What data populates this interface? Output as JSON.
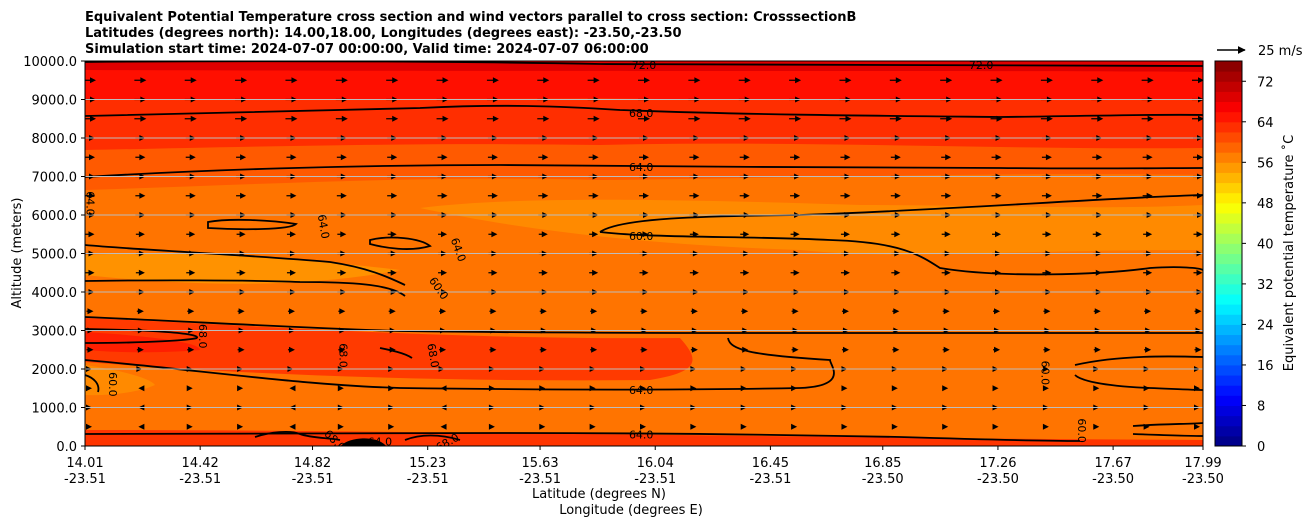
{
  "chart_data": {
    "type": "contour",
    "title_lines": [
      "Equivalent Potential Temperature cross section and wind vectors parallel to cross section: CrosssectionB",
      "Latitudes (degrees north): 14.00,18.00, Longitudes (degrees east): -23.50,-23.50",
      "Simulation start time: 2024-07-07 00:00:00, Valid time: 2024-07-07 06:00:00"
    ],
    "ylabel": "Altitude (meters)",
    "xlabel_lat": "Latitude (degrees N)",
    "xlabel_lon": "Longitude (degrees E)",
    "ylim": [
      0,
      10000
    ],
    "xlim": [
      14.01,
      17.99
    ],
    "yticks": [
      0,
      1000,
      2000,
      3000,
      4000,
      5000,
      6000,
      7000,
      8000,
      9000,
      10000
    ],
    "ytick_labels": [
      "0.0",
      "1000.0",
      "2000.0",
      "3000.0",
      "4000.0",
      "5000.0",
      "6000.0",
      "7000.0",
      "8000.0",
      "9000.0",
      "10000.0"
    ],
    "xticks": [
      {
        "lat": "14.01",
        "lon": "-23.51"
      },
      {
        "lat": "14.42",
        "lon": "-23.51"
      },
      {
        "lat": "14.82",
        "lon": "-23.51"
      },
      {
        "lat": "15.23",
        "lon": "-23.51"
      },
      {
        "lat": "15.63",
        "lon": "-23.51"
      },
      {
        "lat": "16.04",
        "lon": "-23.51"
      },
      {
        "lat": "16.45",
        "lon": "-23.51"
      },
      {
        "lat": "16.85",
        "lon": "-23.50"
      },
      {
        "lat": "17.26",
        "lon": "-23.50"
      },
      {
        "lat": "17.67",
        "lon": "-23.50"
      },
      {
        "lat": "17.99",
        "lon": "-23.50"
      }
    ],
    "colorbar": {
      "label": "Equivalent potential temperature $^\\circ$C",
      "label_text": "Equivalent potential temperature ˚C",
      "min": 0,
      "max": 76,
      "step": 2,
      "ticks": [
        0,
        8,
        16,
        24,
        32,
        40,
        48,
        56,
        64,
        72
      ],
      "tick_labels": [
        "0",
        "8",
        "16",
        "24",
        "32",
        "40",
        "48",
        "56",
        "64",
        "72"
      ]
    },
    "quiver_key": {
      "label": "25 m/s",
      "value_ms": 25
    },
    "contour_labels": [
      {
        "text": "72.0",
        "lat": 16.0,
        "alt": 9900,
        "rot": 0
      },
      {
        "text": "72.0",
        "lat": 17.2,
        "alt": 9900,
        "rot": 0
      },
      {
        "text": "68.0",
        "lat": 15.99,
        "alt": 8650,
        "rot": 0
      },
      {
        "text": "64.0",
        "lat": 15.99,
        "alt": 7250,
        "rot": 0
      },
      {
        "text": "64.0",
        "lat": 14.03,
        "alt": 6300,
        "rot": 90
      },
      {
        "text": "64.0",
        "lat": 14.86,
        "alt": 5700,
        "rot": 80
      },
      {
        "text": "64.0",
        "lat": 15.34,
        "alt": 5100,
        "rot": 70
      },
      {
        "text": "60.0",
        "lat": 15.99,
        "alt": 5450,
        "rot": 0
      },
      {
        "text": "60.0",
        "lat": 15.27,
        "alt": 4100,
        "rot": 55
      },
      {
        "text": "68.0",
        "lat": 14.43,
        "alt": 2850,
        "rot": 90
      },
      {
        "text": "68.0",
        "lat": 14.93,
        "alt": 2350,
        "rot": 90
      },
      {
        "text": "68.0",
        "lat": 15.25,
        "alt": 2350,
        "rot": 80
      },
      {
        "text": "60.0",
        "lat": 14.11,
        "alt": 1600,
        "rot": 90
      },
      {
        "text": "64.0",
        "lat": 15.99,
        "alt": 1450,
        "rot": 0
      },
      {
        "text": "60.0",
        "lat": 17.43,
        "alt": 1900,
        "rot": 90
      },
      {
        "text": "64.0",
        "lat": 15.99,
        "alt": 300,
        "rot": 0
      },
      {
        "text": "68.0",
        "lat": 14.9,
        "alt": 150,
        "rot": 45
      },
      {
        "text": "68.0",
        "lat": 15.3,
        "alt": 100,
        "rot": -30
      },
      {
        "text": "64.0",
        "lat": 15.06,
        "alt": 120,
        "rot": 0
      },
      {
        "text": "60.0",
        "lat": 17.56,
        "alt": 400,
        "rot": 90
      }
    ],
    "colors": {
      "jet": [
        "#00007f",
        "#0000ff",
        "#007fff",
        "#00ffff",
        "#7fff7f",
        "#ffff00",
        "#ff7f00",
        "#ff0000",
        "#7f0000"
      ]
    }
  }
}
